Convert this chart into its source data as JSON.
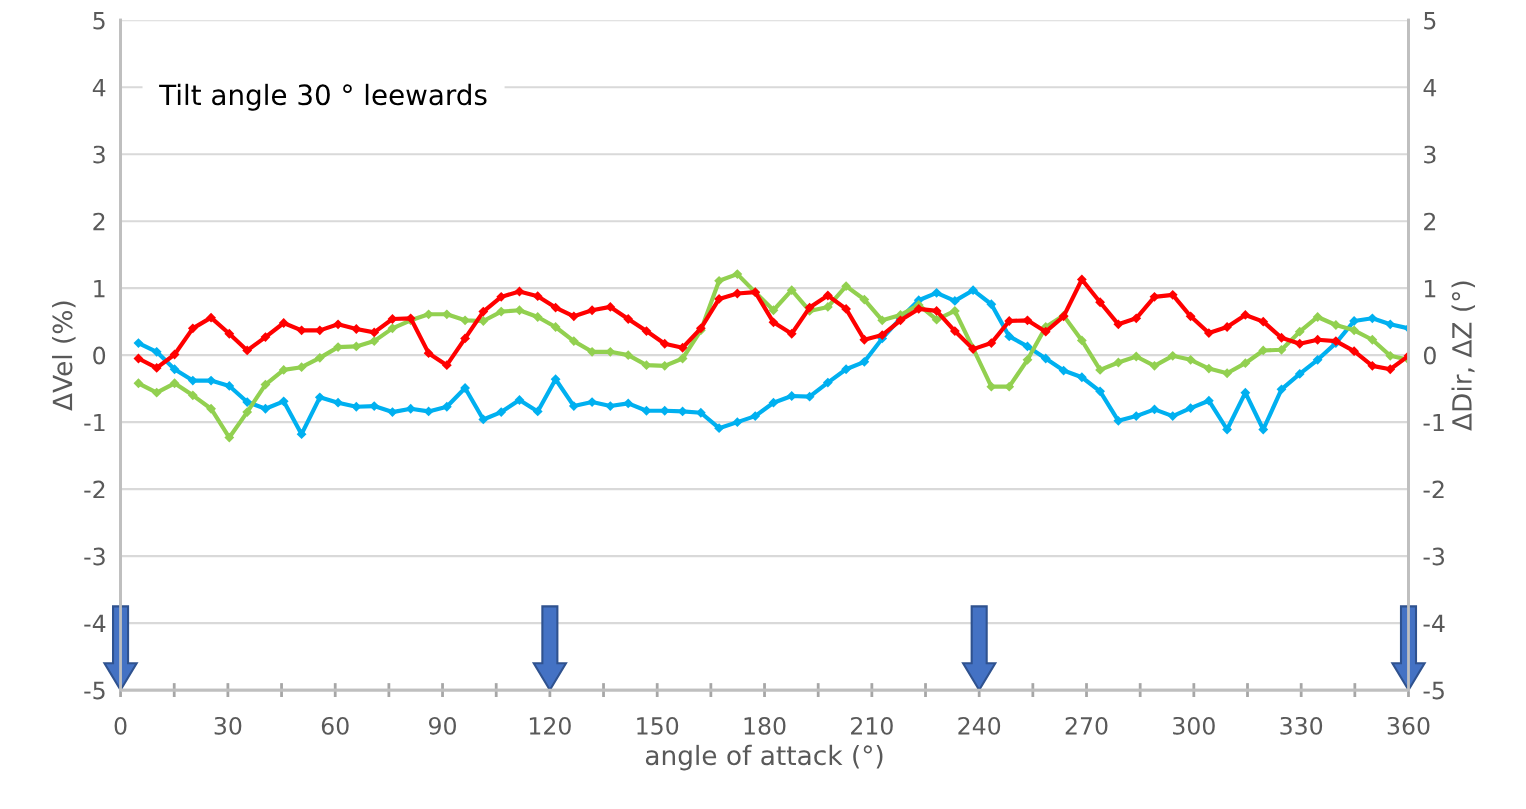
{
  "chart_data": {
    "type": "line",
    "xlabel": "angle of attack (°)",
    "ylabel": "ΔVel (%)",
    "y2label": "ΔDir, ΔZ (°)",
    "annotations": [
      "Tilt angle 30 ° leewards"
    ],
    "x": [
      5,
      10.1,
      15.1,
      20.2,
      25.3,
      30.4,
      35.4,
      40.5,
      45.6,
      50.6,
      55.7,
      60.8,
      65.9,
      70.9,
      76,
      81.1,
      86.1,
      91.2,
      96.3,
      101.4,
      106.4,
      111.5,
      116.6,
      121.6,
      126.7,
      131.8,
      136.9,
      141.9,
      147,
      152.1,
      157.1,
      162.2,
      167.3,
      172.4,
      177.4,
      182.5,
      187.6,
      192.6,
      197.7,
      202.8,
      207.9,
      212.9,
      218,
      223.1,
      228.1,
      233.2,
      238.3,
      243.4,
      248.4,
      253.5,
      258.6,
      263.6,
      268.7,
      273.8,
      278.9,
      283.9,
      289,
      294.1,
      299.1,
      304.2,
      309.3,
      314.4,
      319.4,
      324.5,
      329.6,
      334.6,
      339.7,
      344.8,
      349.9,
      354.9,
      360
    ],
    "series": [
      {
        "color": "#00b0f0",
        "values": [
          0.18,
          0.05,
          -0.21,
          -0.38,
          -0.38,
          -0.46,
          -0.7,
          -0.8,
          -0.69,
          -1.18,
          -0.63,
          -0.71,
          -0.77,
          -0.76,
          -0.85,
          -0.8,
          -0.84,
          -0.77,
          -0.49,
          -0.96,
          -0.85,
          -0.67,
          -0.84,
          -0.36,
          -0.76,
          -0.7,
          -0.76,
          -0.72,
          -0.83,
          -0.83,
          -0.84,
          -0.86,
          -1.09,
          -1.0,
          -0.91,
          -0.71,
          -0.61,
          -0.62,
          -0.41,
          -0.21,
          -0.1,
          0.25,
          0.55,
          0.82,
          0.93,
          0.81,
          0.97,
          0.76,
          0.28,
          0.13,
          -0.05,
          -0.23,
          -0.33,
          -0.54,
          -0.98,
          -0.91,
          -0.81,
          -0.91,
          -0.79,
          -0.68,
          -1.11,
          -0.56,
          -1.11,
          -0.51,
          -0.28,
          -0.07,
          0.18,
          0.51,
          0.55,
          0.46,
          0.4
        ]
      },
      {
        "color": "#92d050",
        "axis": "y2",
        "values": [
          -0.42,
          -0.56,
          -0.42,
          -0.6,
          -0.8,
          -1.23,
          -0.85,
          -0.44,
          -0.22,
          -0.18,
          -0.04,
          0.12,
          0.13,
          0.21,
          0.4,
          0.52,
          0.61,
          0.61,
          0.52,
          0.51,
          0.65,
          0.67,
          0.57,
          0.42,
          0.21,
          0.05,
          0.05,
          0.0,
          -0.15,
          -0.16,
          -0.05,
          0.37,
          1.11,
          1.21,
          0.94,
          0.67,
          0.97,
          0.66,
          0.72,
          1.03,
          0.83,
          0.52,
          0.6,
          0.75,
          0.53,
          0.66,
          0.1,
          -0.47,
          -0.47,
          -0.07,
          0.42,
          0.59,
          0.22,
          -0.22,
          -0.11,
          -0.02,
          -0.16,
          -0.01,
          -0.07,
          -0.2,
          -0.27,
          -0.12,
          0.07,
          0.08,
          0.35,
          0.57,
          0.45,
          0.37,
          0.23,
          -0.01,
          -0.07
        ]
      },
      {
        "color": "#ff0000",
        "axis": "y2",
        "values": [
          -0.05,
          -0.19,
          0.01,
          0.4,
          0.56,
          0.32,
          0.07,
          0.27,
          0.48,
          0.37,
          0.37,
          0.46,
          0.39,
          0.34,
          0.54,
          0.55,
          0.03,
          -0.15,
          0.25,
          0.65,
          0.87,
          0.95,
          0.88,
          0.71,
          0.58,
          0.67,
          0.72,
          0.54,
          0.36,
          0.17,
          0.11,
          0.4,
          0.84,
          0.92,
          0.94,
          0.49,
          0.32,
          0.71,
          0.89,
          0.69,
          0.23,
          0.3,
          0.52,
          0.69,
          0.66,
          0.36,
          0.09,
          0.18,
          0.51,
          0.52,
          0.35,
          0.58,
          1.13,
          0.79,
          0.46,
          0.55,
          0.87,
          0.9,
          0.58,
          0.33,
          0.42,
          0.6,
          0.5,
          0.26,
          0.17,
          0.23,
          0.21,
          0.06,
          -0.16,
          -0.21,
          -0.01
        ]
      }
    ],
    "xlim": [
      0,
      360
    ],
    "xticks": [
      0,
      {
        "value": 15,
        "label": null
      },
      30,
      {
        "value": 45,
        "label": null
      },
      60,
      {
        "value": 75,
        "label": null
      },
      90,
      {
        "value": 105,
        "label": null
      },
      120,
      {
        "value": 135,
        "label": null
      },
      150,
      {
        "value": 165,
        "label": null
      },
      180,
      {
        "value": 195,
        "label": null
      },
      210,
      {
        "value": 225,
        "label": null
      },
      240,
      {
        "value": 255,
        "label": null
      },
      270,
      {
        "value": 285,
        "label": null
      },
      300,
      {
        "value": 315,
        "label": null
      },
      330,
      {
        "value": 345,
        "label": null
      },
      360
    ],
    "ylim": [
      -5,
      5
    ],
    "yticks": [
      -5,
      -4,
      -3,
      -2,
      -1,
      0,
      1,
      2,
      3,
      4,
      5
    ],
    "y2lim": [
      -5,
      5
    ],
    "y2ticks": [
      -5,
      -4,
      -3,
      -2,
      -1,
      0,
      1,
      2,
      3,
      4,
      5
    ],
    "grid": "y",
    "marker": "diamond",
    "line_style": "solid",
    "legend": false
  }
}
